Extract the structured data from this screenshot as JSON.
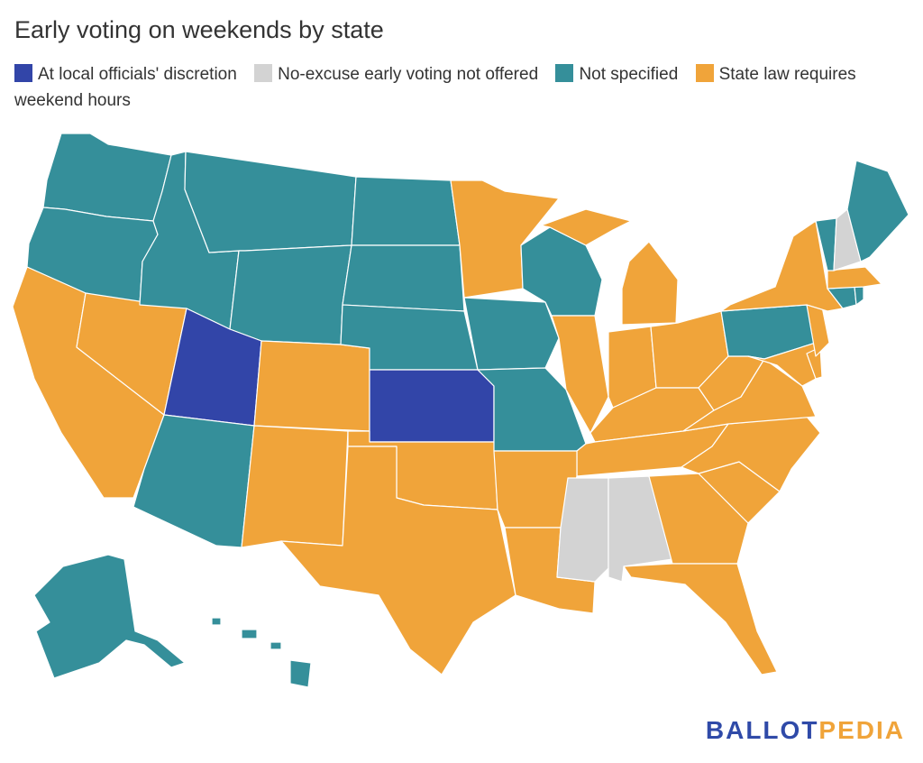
{
  "title": "Early voting on weekends by state",
  "legend": [
    {
      "label": "At local officials' discretion",
      "color": "#3245a8"
    },
    {
      "label": "No-excuse early voting not offered",
      "color": "#d3d3d3"
    },
    {
      "label": "Not specified",
      "color": "#358f9a"
    },
    {
      "label": "State law requires weekend hours",
      "color": "#f0a43a"
    }
  ],
  "states": {
    "WA": "Not specified",
    "OR": "Not specified",
    "ID": "Not specified",
    "MT": "Not specified",
    "WY": "Not specified",
    "ND": "Not specified",
    "SD": "Not specified",
    "NE": "Not specified",
    "IA": "Not specified",
    "WI": "Not specified",
    "MO": "Not specified",
    "AZ": "Not specified",
    "PA": "Not specified",
    "VT": "Not specified",
    "ME": "Not specified",
    "CT": "Not specified",
    "RI": "Not specified",
    "AK": "Not specified",
    "HI": "Not specified",
    "UT": "At local officials' discretion",
    "KS": "At local officials' discretion",
    "NH": "No-excuse early voting not offered",
    "MS": "No-excuse early voting not offered",
    "AL": "No-excuse early voting not offered",
    "CA": "State law requires weekend hours",
    "NV": "State law requires weekend hours",
    "CO": "State law requires weekend hours",
    "NM": "State law requires weekend hours",
    "TX": "State law requires weekend hours",
    "OK": "State law requires weekend hours",
    "MN": "State law requires weekend hours",
    "AR": "State law requires weekend hours",
    "LA": "State law requires weekend hours",
    "IL": "State law requires weekend hours",
    "MI": "State law requires weekend hours",
    "IN": "State law requires weekend hours",
    "OH": "State law requires weekend hours",
    "KY": "State law requires weekend hours",
    "TN": "State law requires weekend hours",
    "GA": "State law requires weekend hours",
    "FL": "State law requires weekend hours",
    "SC": "State law requires weekend hours",
    "NC": "State law requires weekend hours",
    "VA": "State law requires weekend hours",
    "WV": "State law requires weekend hours",
    "MD": "State law requires weekend hours",
    "DE": "State law requires weekend hours",
    "NJ": "State law requires weekend hours",
    "NY": "State law requires weekend hours",
    "MA": "State law requires weekend hours"
  },
  "logo": {
    "part1": "BALLOT",
    "part2": "PEDIA"
  }
}
